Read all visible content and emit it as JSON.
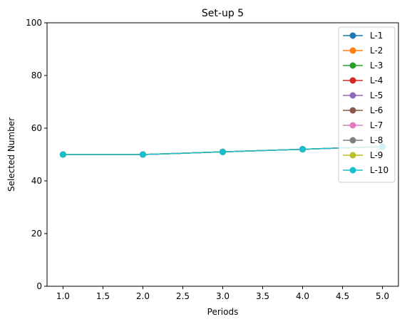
{
  "chart_data": {
    "type": "line",
    "title": "Set-up 5",
    "xlabel": "Periods",
    "ylabel": "Selected Number",
    "xlim": [
      0.8,
      5.2
    ],
    "ylim": [
      0,
      100
    ],
    "xticks": [
      "1.0",
      "1.5",
      "2.0",
      "2.5",
      "3.0",
      "3.5",
      "4.0",
      "4.5",
      "5.0"
    ],
    "yticks": [
      "0",
      "20",
      "40",
      "60",
      "80",
      "100"
    ],
    "x": [
      1,
      2,
      3,
      4,
      5
    ],
    "grid": false,
    "legend_position": "top-right",
    "series": [
      {
        "name": "L-1",
        "color": "#1f77b4",
        "values": [
          50,
          50,
          51,
          52,
          53
        ]
      },
      {
        "name": "L-2",
        "color": "#ff7f0e",
        "values": [
          50,
          50,
          51,
          52,
          53
        ]
      },
      {
        "name": "L-3",
        "color": "#2ca02c",
        "values": [
          50,
          50,
          51,
          52,
          53
        ]
      },
      {
        "name": "L-4",
        "color": "#d62728",
        "values": [
          50,
          50,
          51,
          52,
          53
        ]
      },
      {
        "name": "L-5",
        "color": "#9467bd",
        "values": [
          50,
          50,
          51,
          52,
          53
        ]
      },
      {
        "name": "L-6",
        "color": "#8c564b",
        "values": [
          50,
          50,
          51,
          52,
          53
        ]
      },
      {
        "name": "L-7",
        "color": "#e377c2",
        "values": [
          50,
          50,
          51,
          52,
          53
        ]
      },
      {
        "name": "L-8",
        "color": "#7f7f7f",
        "values": [
          50,
          50,
          51,
          52,
          53
        ]
      },
      {
        "name": "L-9",
        "color": "#bcbd22",
        "values": [
          50,
          50,
          51,
          52,
          53
        ]
      },
      {
        "name": "L-10",
        "color": "#17becf",
        "values": [
          50,
          50,
          51,
          52,
          53
        ]
      }
    ]
  }
}
